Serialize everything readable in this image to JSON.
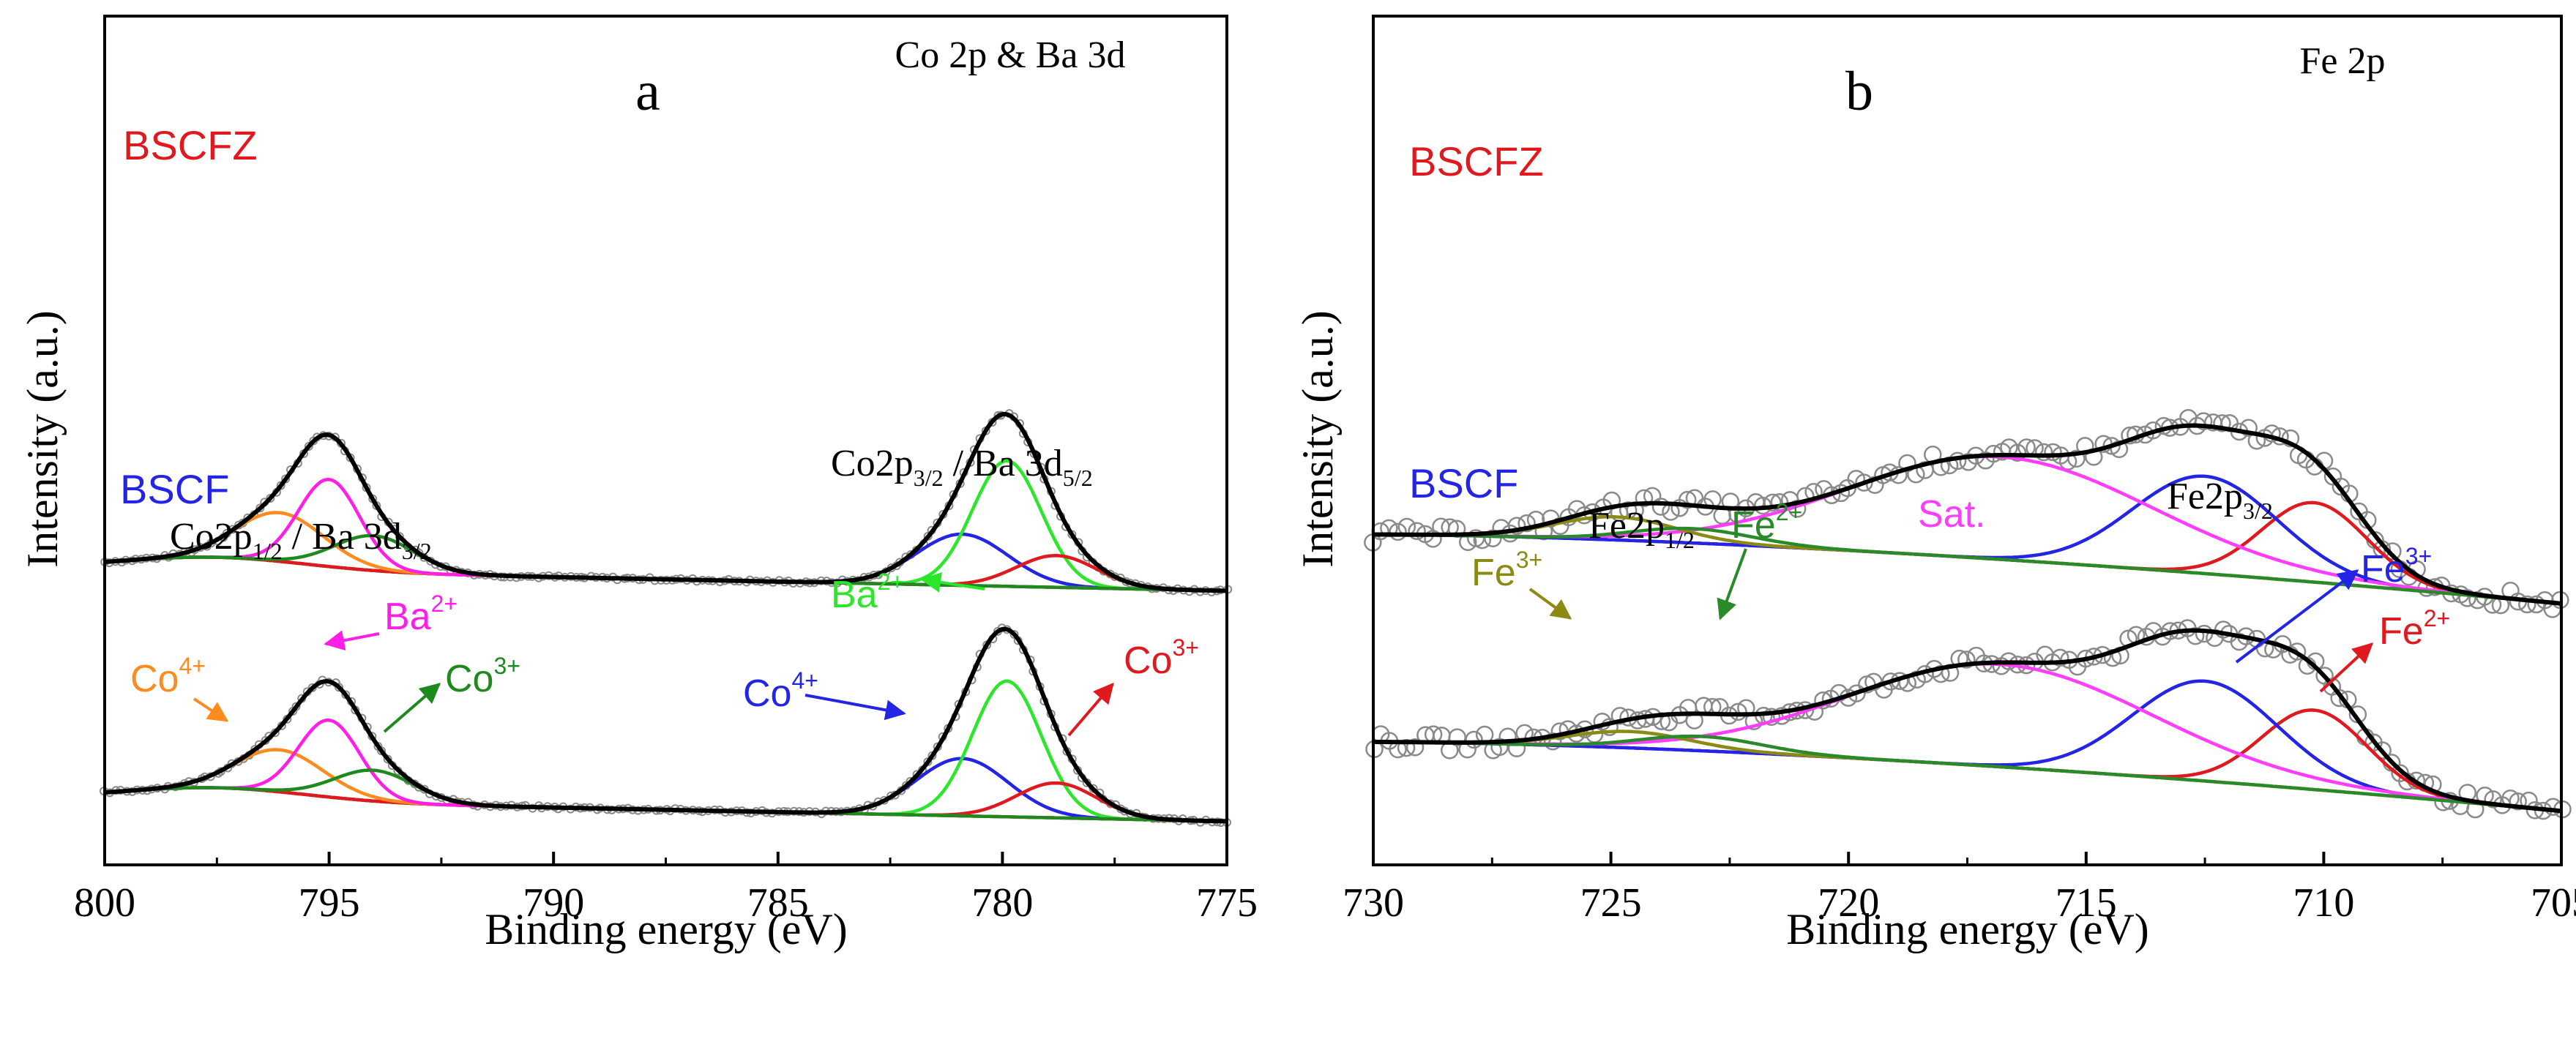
{
  "colors": {
    "envelope": "#000000",
    "raw": "#8a8a8a",
    "BSCFZ": "#e0191f",
    "BSCF": "#2424e6",
    "Ba": "#2ce62c",
    "Co4": "#ff8a1e",
    "Co3": "#1e8a1e",
    "Ba_pink": "#ff1ee6",
    "Sat": "#ff3cff",
    "Fe3": "#8a8a14",
    "Fe2_green": "#2a8a2a",
    "bg_orange": "#ff8a1e",
    "bg_olive": "#8a8a14",
    "bg_green": "#1e8a1e"
  },
  "chart_data": [
    {
      "type": "line",
      "panel_label": "a",
      "title": "Co 2p & Ba 3d",
      "xlabel": "Binding energy (eV)",
      "ylabel": "Intensity (a.u.)",
      "xlim": [
        800,
        775
      ],
      "x_ticks": [
        "800",
        "795",
        "790",
        "785",
        "780",
        "775"
      ],
      "tick_values": [
        800,
        795,
        790,
        785,
        780,
        775
      ],
      "ylim": [
        0,
        10
      ],
      "samples": [
        {
          "name": "BSCFZ",
          "baseline_offset": 5.35,
          "peaks": [
            {
              "name": "Co4+ (2p3/2)",
              "center": 780.9,
              "fwhm": 2.4,
              "amp": 1.0,
              "color": "BSCF"
            },
            {
              "name": "Ba2+ (3d5/2)",
              "center": 779.9,
              "fwhm": 1.8,
              "amp": 2.45,
              "color": "Ba"
            },
            {
              "name": "Co3+ (2p3/2)",
              "center": 778.8,
              "fwhm": 2.1,
              "amp": 0.62,
              "color": "BSCFZ"
            },
            {
              "name": "Co4+ (2p1/2)",
              "center": 796.1,
              "fwhm": 2.3,
              "amp": 0.95,
              "color": "Co4"
            },
            {
              "name": "Ba2+ (3d3/2)",
              "center": 795.0,
              "fwhm": 1.6,
              "amp": 1.7,
              "color": "Ba_pink"
            },
            {
              "name": "Co3+ (2p1/2)",
              "center": 794.0,
              "fwhm": 2.1,
              "amp": 0.68,
              "color": "Co3"
            }
          ]
        },
        {
          "name": "BSCF",
          "baseline_offset": 0.85,
          "peaks": [
            {
              "name": "Co4+ (2p3/2)",
              "center": 780.9,
              "fwhm": 2.4,
              "amp": 1.12,
              "color": "BSCF"
            },
            {
              "name": "Ba2+ (3d5/2)",
              "center": 779.9,
              "fwhm": 1.8,
              "amp": 2.65,
              "color": "Ba"
            },
            {
              "name": "Co3+ (2p3/2)",
              "center": 778.8,
              "fwhm": 2.1,
              "amp": 0.68,
              "color": "BSCFZ"
            },
            {
              "name": "Co4+ (2p1/2)",
              "center": 796.1,
              "fwhm": 2.3,
              "amp": 0.82,
              "color": "Co4"
            },
            {
              "name": "Ba2+ (3d3/2)",
              "center": 795.0,
              "fwhm": 1.6,
              "amp": 1.5,
              "color": "Ba_pink"
            },
            {
              "name": "Co3+ (2p1/2)",
              "center": 794.0,
              "fwhm": 2.1,
              "amp": 0.6,
              "color": "Co3"
            }
          ]
        }
      ],
      "annotations": {
        "co2p12": {
          "main": "Co2p",
          "s1": "1/2",
          "mid": " / Ba 3d",
          "s2": "3/2"
        },
        "co2p32": {
          "main": "Co2p",
          "s1": "3/2",
          "mid": " / Ba 3d",
          "s2": "5/2"
        },
        "co4_left": {
          "base": "Co",
          "sup": "4+"
        },
        "ba_left": {
          "base": "Ba",
          "sup": "2+"
        },
        "co3_left": {
          "base": "Co",
          "sup": "3+"
        },
        "ba_right": {
          "base": "Ba",
          "sup": "2+"
        },
        "co4_right": {
          "base": "Co",
          "sup": "4+"
        },
        "co3_right": {
          "base": "Co",
          "sup": "3+"
        }
      }
    },
    {
      "type": "line",
      "panel_label": "b",
      "title": "Fe 2p",
      "xlabel": "Binding energy (eV)",
      "ylabel": "Intensity (a.u.)",
      "xlim": [
        730,
        705
      ],
      "x_ticks": [
        "730",
        "725",
        "720",
        "715",
        "710",
        "705"
      ],
      "tick_values": [
        730,
        725,
        720,
        715,
        710,
        705
      ],
      "ylim": [
        0,
        10
      ],
      "samples": [
        {
          "name": "BSCFZ",
          "baseline_offset": 5.0,
          "peaks": [
            {
              "name": "Fe2+ (2p3/2)",
              "center": 710.2,
              "fwhm": 2.6,
              "amp": 1.55,
              "color": "BSCFZ"
            },
            {
              "name": "Fe3+ (2p3/2)",
              "center": 712.5,
              "fwhm": 3.6,
              "amp": 1.9,
              "color": "BSCF"
            },
            {
              "name": "Sat.",
              "center": 716.8,
              "fwhm": 7.5,
              "amp": 2.0,
              "color": "Sat"
            },
            {
              "name": "Fe3+ (2p1/2)",
              "center": 724.9,
              "fwhm": 3.0,
              "amp": 0.45,
              "color": "Fe3"
            },
            {
              "name": "Fe2+ (2p1/2)",
              "center": 723.3,
              "fwhm": 3.0,
              "amp": 0.28,
              "color": "Fe2_green"
            }
          ]
        },
        {
          "name": "BSCF",
          "baseline_offset": 0.95,
          "peaks": [
            {
              "name": "Fe2+ (2p3/2)",
              "center": 710.2,
              "fwhm": 2.6,
              "amp": 1.55,
              "color": "BSCFZ"
            },
            {
              "name": "Fe3+ (2p3/2)",
              "center": 712.5,
              "fwhm": 3.6,
              "amp": 1.95,
              "color": "BSCF"
            },
            {
              "name": "Sat.",
              "center": 716.8,
              "fwhm": 7.5,
              "amp": 2.0,
              "color": "Sat"
            },
            {
              "name": "Fe3+ (2p1/2)",
              "center": 724.6,
              "fwhm": 3.0,
              "amp": 0.32,
              "color": "Fe3"
            },
            {
              "name": "Fe2+ (2p1/2)",
              "center": 723.1,
              "fwhm": 3.0,
              "amp": 0.28,
              "color": "Fe2_green"
            }
          ]
        }
      ],
      "annotations": {
        "fe3_left": {
          "base": "Fe",
          "sup": "3+"
        },
        "fe2p12": {
          "main": "Fe2p",
          "sub": "1/2"
        },
        "fe2_left": {
          "base": "Fe",
          "sup": "2+"
        },
        "sat": "Sat.",
        "fe2p32": {
          "main": "Fe2p",
          "sub": "3/2"
        },
        "fe3_right": {
          "base": "Fe",
          "sup": "3+"
        },
        "fe2_right": {
          "base": "Fe",
          "sup": "2+"
        }
      }
    }
  ]
}
